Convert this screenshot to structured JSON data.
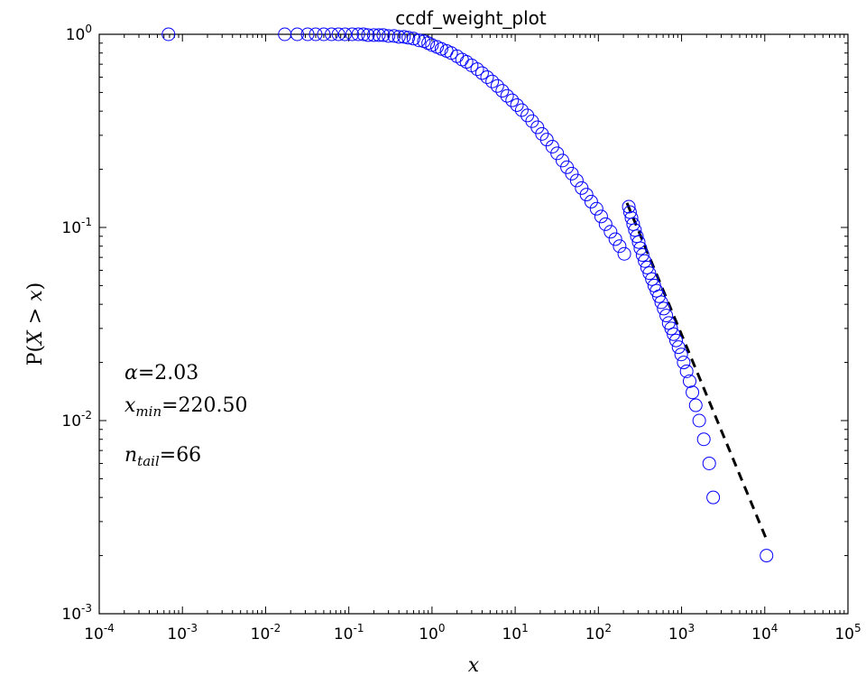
{
  "chart_data": {
    "type": "scatter",
    "title": "ccdf_weight_plot",
    "xlabel": "x",
    "ylabel": "P(X > x)",
    "xscale": "log",
    "yscale": "log",
    "xlim": [
      0.0001,
      100000
    ],
    "ylim": [
      0.001,
      1
    ],
    "grid": false,
    "x_ticks": [
      {
        "base": "10",
        "exp": "-4",
        "value": 0.0001
      },
      {
        "base": "10",
        "exp": "-3",
        "value": 0.001
      },
      {
        "base": "10",
        "exp": "-2",
        "value": 0.01
      },
      {
        "base": "10",
        "exp": "-1",
        "value": 0.1
      },
      {
        "base": "10",
        "exp": "0",
        "value": 1
      },
      {
        "base": "10",
        "exp": "1",
        "value": 10
      },
      {
        "base": "10",
        "exp": "2",
        "value": 100
      },
      {
        "base": "10",
        "exp": "3",
        "value": 1000
      },
      {
        "base": "10",
        "exp": "4",
        "value": 10000
      },
      {
        "base": "10",
        "exp": "5",
        "value": 100000
      }
    ],
    "y_ticks": [
      {
        "base": "10",
        "exp": "0",
        "value": 1
      },
      {
        "base": "10",
        "exp": "-1",
        "value": 0.1
      },
      {
        "base": "10",
        "exp": "-2",
        "value": 0.01
      },
      {
        "base": "10",
        "exp": "-3",
        "value": 0.001
      }
    ],
    "series": [
      {
        "marker": "circle-open",
        "color": "#0000ff",
        "points": [
          [
            0.00068,
            1.0
          ],
          [
            0.017,
            1.0
          ],
          [
            0.024,
            1.0
          ],
          [
            0.032,
            1.0
          ],
          [
            0.04,
            1.0
          ],
          [
            0.05,
            1.0
          ],
          [
            0.062,
            1.0
          ],
          [
            0.075,
            1.0
          ],
          [
            0.09,
            1.0
          ],
          [
            0.11,
            1.0
          ],
          [
            0.13,
            1.0
          ],
          [
            0.15,
            1.0
          ],
          [
            0.17,
            0.99
          ],
          [
            0.2,
            0.99
          ],
          [
            0.23,
            0.99
          ],
          [
            0.26,
            0.99
          ],
          [
            0.3,
            0.98
          ],
          [
            0.35,
            0.98
          ],
          [
            0.4,
            0.97
          ],
          [
            0.46,
            0.97
          ],
          [
            0.52,
            0.96
          ],
          [
            0.6,
            0.95
          ],
          [
            0.7,
            0.93
          ],
          [
            0.8,
            0.92
          ],
          [
            0.9,
            0.9
          ],
          [
            1.0,
            0.88
          ],
          [
            1.15,
            0.86
          ],
          [
            1.3,
            0.84
          ],
          [
            1.5,
            0.82
          ],
          [
            1.7,
            0.8
          ],
          [
            2.0,
            0.77
          ],
          [
            2.3,
            0.74
          ],
          [
            2.6,
            0.72
          ],
          [
            3.0,
            0.69
          ],
          [
            3.5,
            0.66
          ],
          [
            4.0,
            0.63
          ],
          [
            4.6,
            0.6
          ],
          [
            5.3,
            0.57
          ],
          [
            6.1,
            0.54
          ],
          [
            7.0,
            0.51
          ],
          [
            8.0,
            0.48
          ],
          [
            9.2,
            0.455
          ],
          [
            10.5,
            0.43
          ],
          [
            12.0,
            0.405
          ],
          [
            14.0,
            0.38
          ],
          [
            16.0,
            0.355
          ],
          [
            18.5,
            0.33
          ],
          [
            21.0,
            0.305
          ],
          [
            24.0,
            0.285
          ],
          [
            28.0,
            0.262
          ],
          [
            32.0,
            0.242
          ],
          [
            37.0,
            0.222
          ],
          [
            42.0,
            0.205
          ],
          [
            48.0,
            0.19
          ],
          [
            55.0,
            0.175
          ],
          [
            63.0,
            0.16
          ],
          [
            72.0,
            0.148
          ],
          [
            82.0,
            0.136
          ],
          [
            95.0,
            0.125
          ],
          [
            108.0,
            0.114
          ],
          [
            122.0,
            0.104
          ],
          [
            140.0,
            0.095
          ],
          [
            160.0,
            0.087
          ],
          [
            180.0,
            0.08
          ],
          [
            205.0,
            0.073
          ],
          [
            232.0,
            0.128
          ],
          [
            240.0,
            0.12
          ],
          [
            250.0,
            0.112
          ],
          [
            262.0,
            0.104
          ],
          [
            275.0,
            0.097
          ],
          [
            290.0,
            0.09
          ],
          [
            305.0,
            0.084
          ],
          [
            320.0,
            0.078
          ],
          [
            340.0,
            0.072
          ],
          [
            360.0,
            0.067
          ],
          [
            385.0,
            0.062
          ],
          [
            410.0,
            0.058
          ],
          [
            440.0,
            0.054
          ],
          [
            470.0,
            0.05
          ],
          [
            500.0,
            0.047
          ],
          [
            535.0,
            0.044
          ],
          [
            570.0,
            0.041
          ],
          [
            610.0,
            0.038
          ],
          [
            655.0,
            0.035
          ],
          [
            700.0,
            0.032
          ],
          [
            750.0,
            0.03
          ],
          [
            800.0,
            0.028
          ],
          [
            860.0,
            0.026
          ],
          [
            920.0,
            0.024
          ],
          [
            990.0,
            0.022
          ],
          [
            1060.0,
            0.02
          ],
          [
            1150.0,
            0.018
          ],
          [
            1250.0,
            0.016
          ],
          [
            1350.0,
            0.014
          ],
          [
            1480.0,
            0.012
          ],
          [
            1630.0,
            0.01
          ],
          [
            1850.0,
            0.008
          ],
          [
            2150.0,
            0.006
          ],
          [
            2400.0,
            0.004
          ],
          [
            10500.0,
            0.002
          ]
        ]
      }
    ],
    "fit_line": {
      "style": "dashed",
      "color": "#000000",
      "x": [
        220.5,
        10500.0
      ],
      "y": [
        0.134,
        0.00242
      ]
    },
    "annotations": {
      "alpha": {
        "symbol": "α",
        "value": "2.03"
      },
      "xmin": {
        "symbol": "x",
        "sub": "min",
        "value": "220.50"
      },
      "ntail": {
        "symbol": "n",
        "sub": "tail",
        "value": "66"
      }
    }
  }
}
